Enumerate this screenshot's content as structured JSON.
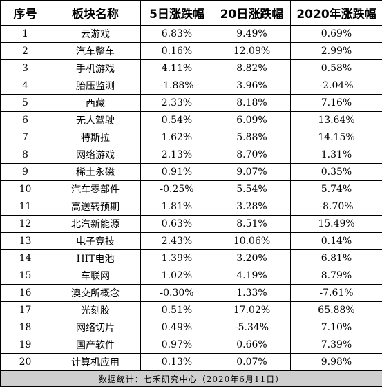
{
  "table": {
    "headers": [
      "序号",
      "板块名称",
      "5日涨跌幅",
      "20日涨跌幅",
      "2020年涨跌幅"
    ],
    "rows": [
      [
        "1",
        "云游戏",
        "6.83%",
        "9.49%",
        "0.69%"
      ],
      [
        "2",
        "汽车整车",
        "0.16%",
        "12.09%",
        "2.99%"
      ],
      [
        "3",
        "手机游戏",
        "4.11%",
        "8.82%",
        "0.58%"
      ],
      [
        "4",
        "胎压监测",
        "-1.88%",
        "3.96%",
        "-2.04%"
      ],
      [
        "5",
        "西藏",
        "2.33%",
        "8.18%",
        "7.16%"
      ],
      [
        "6",
        "无人驾驶",
        "0.54%",
        "6.09%",
        "13.64%"
      ],
      [
        "7",
        "特斯拉",
        "1.62%",
        "5.88%",
        "14.15%"
      ],
      [
        "8",
        "网络游戏",
        "2.13%",
        "8.70%",
        "1.31%"
      ],
      [
        "9",
        "稀土永磁",
        "0.91%",
        "9.07%",
        "0.35%"
      ],
      [
        "10",
        "汽车零部件",
        "-0.25%",
        "5.54%",
        "5.74%"
      ],
      [
        "11",
        "高送转预期",
        "1.81%",
        "3.28%",
        "-8.70%"
      ],
      [
        "12",
        "北汽新能源",
        "0.63%",
        "8.51%",
        "15.49%"
      ],
      [
        "13",
        "电子竞技",
        "2.43%",
        "10.06%",
        "0.14%"
      ],
      [
        "14",
        "HIT电池",
        "1.39%",
        "3.20%",
        "6.81%"
      ],
      [
        "15",
        "车联网",
        "1.02%",
        "4.19%",
        "8.79%"
      ],
      [
        "16",
        "澳交所概念",
        "-0.30%",
        "1.33%",
        "-7.61%"
      ],
      [
        "17",
        "光刻胶",
        "0.51%",
        "17.02%",
        "65.88%"
      ],
      [
        "18",
        "网络切片",
        "0.49%",
        "-5.34%",
        "7.10%"
      ],
      [
        "19",
        "国产软件",
        "0.97%",
        "0.66%",
        "7.39%"
      ],
      [
        "20",
        "计算机应用",
        "0.13%",
        "0.07%",
        "9.98%"
      ]
    ],
    "footer": "数据统计：七禾研究中心（2020年6月11日）"
  }
}
